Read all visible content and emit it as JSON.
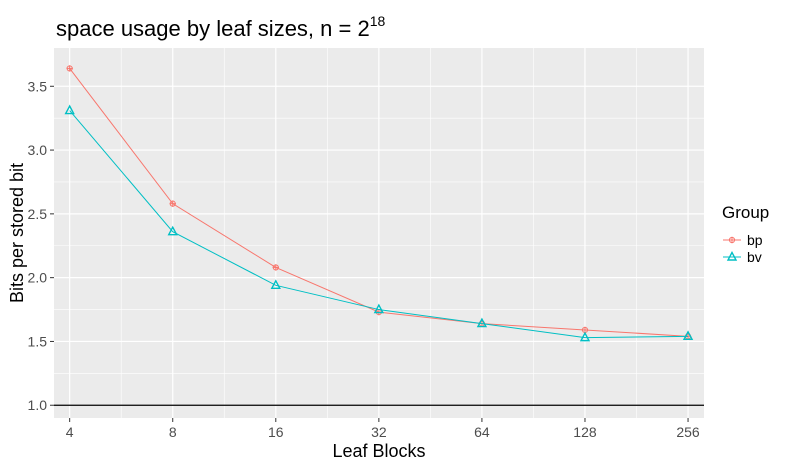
{
  "chart_data": {
    "type": "line",
    "title": "space usage by leaf sizes, n = 2",
    "title_superscript": "18",
    "xlabel": "Leaf Blocks",
    "ylabel": "Bits per stored bit",
    "x_scale": "log2",
    "categories": [
      "4",
      "8",
      "16",
      "32",
      "64",
      "128",
      "256"
    ],
    "x": [
      4,
      8,
      16,
      32,
      64,
      128,
      256
    ],
    "xlim": [
      3.6,
      285
    ],
    "ylim": [
      0.9,
      3.8
    ],
    "yticks": [
      1.0,
      1.5,
      2.0,
      2.5,
      3.0,
      3.5
    ],
    "ytick_labels": [
      "1.0",
      "1.5",
      "2.0",
      "2.5",
      "3.0",
      "3.5"
    ],
    "reference_line": {
      "y": 1.0,
      "color": "#000000"
    },
    "grid": true,
    "legend": {
      "title": "Group",
      "position": "right"
    },
    "series": [
      {
        "name": "bp",
        "color": "#F8766D",
        "marker": "circle-plus",
        "values": [
          3.64,
          2.58,
          2.08,
          1.73,
          1.64,
          1.59,
          1.54
        ]
      },
      {
        "name": "bv",
        "color": "#00BFC4",
        "marker": "triangle",
        "values": [
          3.31,
          2.36,
          1.94,
          1.75,
          1.64,
          1.53,
          1.54
        ]
      }
    ]
  }
}
